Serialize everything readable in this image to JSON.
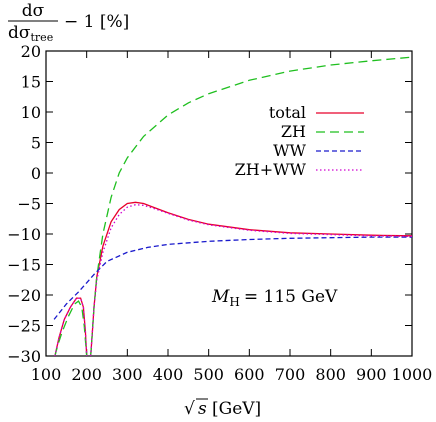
{
  "chart_data": {
    "type": "line",
    "ylabel": {
      "numerator": "dσ",
      "denominator": "dσ",
      "denominator_sub": "tree",
      "suffix": "− 1 [%]"
    },
    "xlabel": {
      "sqrt_symbol": "√",
      "variable": "s",
      "unit": "[GeV]"
    },
    "annotation": {
      "symbol": "M",
      "subscript": "H",
      "value_text": "= 115 GeV"
    },
    "xlim": [
      100,
      1000
    ],
    "ylim": [
      -30,
      20
    ],
    "x_ticks": [
      100,
      200,
      300,
      400,
      500,
      600,
      700,
      800,
      900,
      1000
    ],
    "y_ticks": [
      20,
      15,
      10,
      5,
      0,
      -5,
      -10,
      -15,
      -20,
      -25,
      -30
    ],
    "grid": false,
    "legend_position": "upper-right",
    "series": [
      {
        "name": "total",
        "color": "#e8002a",
        "dash": "solid",
        "points": [
          [
            122,
            -30
          ],
          [
            132,
            -27
          ],
          [
            145,
            -24
          ],
          [
            160,
            -22
          ],
          [
            175,
            -20.5
          ],
          [
            185,
            -20.5
          ],
          [
            192,
            -22
          ],
          [
            197,
            -26
          ],
          [
            200,
            -30
          ],
          [
            null,
            null
          ],
          [
            210,
            -30
          ],
          [
            214,
            -26
          ],
          [
            218,
            -22
          ],
          [
            225,
            -17
          ],
          [
            240,
            -12
          ],
          [
            260,
            -8
          ],
          [
            280,
            -6
          ],
          [
            300,
            -5
          ],
          [
            320,
            -4.8
          ],
          [
            340,
            -5.0
          ],
          [
            360,
            -5.5
          ],
          [
            400,
            -6.5
          ],
          [
            450,
            -7.6
          ],
          [
            500,
            -8.4
          ],
          [
            600,
            -9.3
          ],
          [
            700,
            -9.8
          ],
          [
            800,
            -10.0
          ],
          [
            900,
            -10.2
          ],
          [
            1000,
            -10.3
          ]
        ]
      },
      {
        "name": "ZH",
        "color": "#1fbf1f",
        "dash": "long",
        "points": [
          [
            122,
            -30
          ],
          [
            130,
            -28
          ],
          [
            140,
            -26
          ],
          [
            155,
            -23.5
          ],
          [
            170,
            -21.5
          ],
          [
            180,
            -21
          ],
          [
            188,
            -22
          ],
          [
            194,
            -25
          ],
          [
            200,
            -30
          ],
          [
            null,
            null
          ],
          [
            210,
            -30
          ],
          [
            214,
            -26
          ],
          [
            218,
            -22
          ],
          [
            225,
            -17
          ],
          [
            240,
            -10
          ],
          [
            260,
            -4
          ],
          [
            280,
            0
          ],
          [
            300,
            2.5
          ],
          [
            340,
            6
          ],
          [
            400,
            9.5
          ],
          [
            450,
            11.5
          ],
          [
            500,
            13
          ],
          [
            600,
            15.2
          ],
          [
            700,
            16.7
          ],
          [
            800,
            17.7
          ],
          [
            900,
            18.4
          ],
          [
            1000,
            19
          ]
        ]
      },
      {
        "name": "WW",
        "color": "#1a1acc",
        "dash": "short",
        "points": [
          [
            120,
            -24
          ],
          [
            150,
            -21.5
          ],
          [
            180,
            -19.5
          ],
          [
            200,
            -18
          ],
          [
            220,
            -16.5
          ],
          [
            250,
            -14.5
          ],
          [
            300,
            -13
          ],
          [
            350,
            -12.2
          ],
          [
            400,
            -11.7
          ],
          [
            500,
            -11.2
          ],
          [
            600,
            -10.9
          ],
          [
            700,
            -10.7
          ],
          [
            800,
            -10.6
          ],
          [
            900,
            -10.5
          ],
          [
            1000,
            -10.5
          ]
        ]
      },
      {
        "name": "ZH+WW",
        "color": "#d000d0",
        "dash": "dot",
        "points": [
          [
            122,
            -30
          ],
          [
            132,
            -27
          ],
          [
            145,
            -24
          ],
          [
            160,
            -22
          ],
          [
            175,
            -20.5
          ],
          [
            185,
            -20.5
          ],
          [
            192,
            -22
          ],
          [
            197,
            -26
          ],
          [
            200,
            -30
          ],
          [
            null,
            null
          ],
          [
            210,
            -30
          ],
          [
            214,
            -26
          ],
          [
            218,
            -22
          ],
          [
            225,
            -17.5
          ],
          [
            240,
            -13
          ],
          [
            260,
            -9
          ],
          [
            280,
            -6.8
          ],
          [
            300,
            -5.6
          ],
          [
            320,
            -5.2
          ],
          [
            340,
            -5.3
          ],
          [
            360,
            -5.7
          ],
          [
            400,
            -6.6
          ],
          [
            450,
            -7.7
          ],
          [
            500,
            -8.5
          ],
          [
            600,
            -9.4
          ],
          [
            700,
            -9.9
          ],
          [
            800,
            -10.1
          ],
          [
            900,
            -10.3
          ],
          [
            1000,
            -10.4
          ]
        ]
      }
    ]
  }
}
